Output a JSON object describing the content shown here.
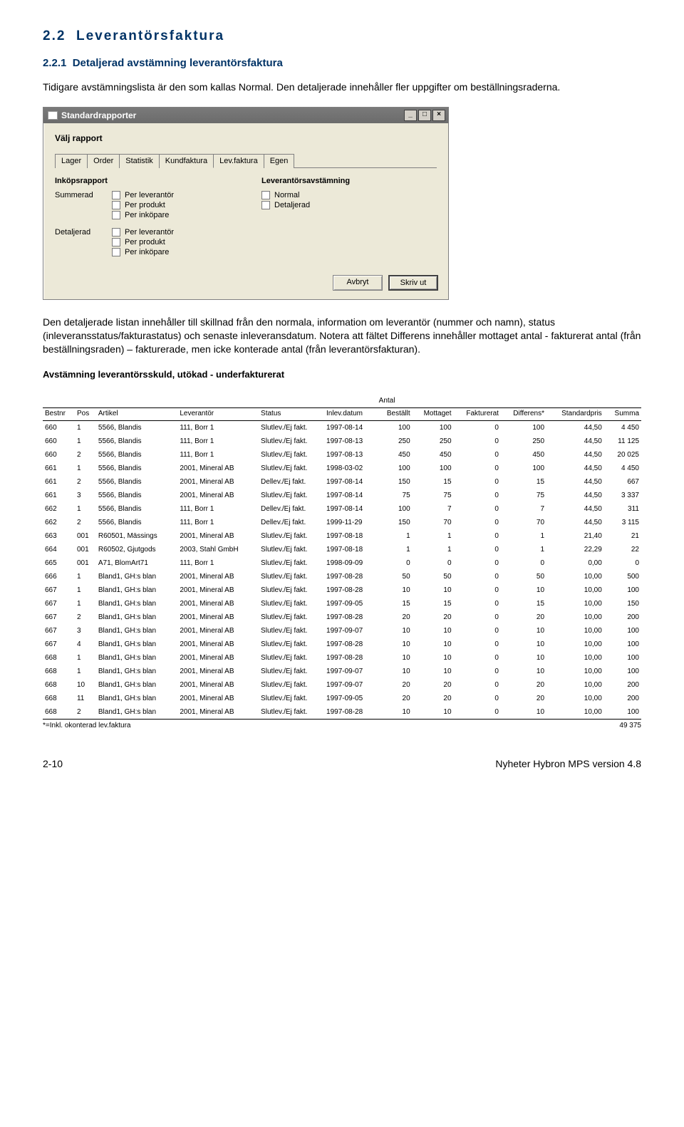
{
  "section": {
    "number": "2.2",
    "title": "Leverantörsfaktura",
    "sub_number": "2.2.1",
    "sub_title": "Detaljerad avstämning leverantörsfaktura",
    "para1": "Tidigare avstämningslista är den som kallas Normal. Den detaljerade innehåller fler uppgifter om beställningsraderna.",
    "para2": "Den detaljerade listan innehåller till skillnad från den normala, information om leverantör (nummer och namn), status (inleveransstatus/fakturastatus) och senaste inleveransdatum. Notera att fältet Differens innehåller mottaget antal - fakturerat antal (från beställningsraden) – fakturerade, men icke konterade antal (från leverantörsfakturan)."
  },
  "dialog": {
    "title": "Standardrapporter",
    "heading": "Välj rapport",
    "tabs": [
      "Lager",
      "Order",
      "Statistik",
      "Kundfaktura",
      "Lev.faktura",
      "Egen"
    ],
    "active_tab": "Lev.faktura",
    "left": {
      "heading": "Inköpsrapport",
      "group1_label": "Summerad",
      "group1_items": [
        "Per leverantör",
        "Per produkt",
        "Per inköpare"
      ],
      "group2_label": "Detaljerad",
      "group2_items": [
        "Per leverantör",
        "Per produkt",
        "Per inköpare"
      ]
    },
    "right": {
      "heading": "Leverantörsavstämning",
      "items": [
        "Normal",
        "Detaljerad"
      ]
    },
    "btn_cancel": "Avbryt",
    "btn_print": "Skriv ut"
  },
  "report": {
    "title": "Avstämning leverantörsskuld, utökad - underfakturerat",
    "group_header": "Antal",
    "columns": [
      "Bestnr",
      "Pos",
      "Artikel",
      "Leverantör",
      "Status",
      "Inlev.datum",
      "Beställt",
      "Mottaget",
      "Fakturerat",
      "Differens*",
      "Standardpris",
      "Summa"
    ],
    "rows": [
      [
        "660",
        "1",
        "5566, Blandis",
        "111, Borr 1",
        "Slutlev./Ej fakt.",
        "1997-08-14",
        "100",
        "100",
        "0",
        "100",
        "44,50",
        "4 450"
      ],
      [
        "660",
        "1",
        "5566, Blandis",
        "111, Borr 1",
        "Slutlev./Ej fakt.",
        "1997-08-13",
        "250",
        "250",
        "0",
        "250",
        "44,50",
        "11 125"
      ],
      [
        "660",
        "2",
        "5566, Blandis",
        "111, Borr 1",
        "Slutlev./Ej fakt.",
        "1997-08-13",
        "450",
        "450",
        "0",
        "450",
        "44,50",
        "20 025"
      ],
      [
        "661",
        "1",
        "5566, Blandis",
        "2001, Mineral AB",
        "Slutlev./Ej fakt.",
        "1998-03-02",
        "100",
        "100",
        "0",
        "100",
        "44,50",
        "4 450"
      ],
      [
        "661",
        "2",
        "5566, Blandis",
        "2001, Mineral AB",
        "Dellev./Ej fakt.",
        "1997-08-14",
        "150",
        "15",
        "0",
        "15",
        "44,50",
        "667"
      ],
      [
        "661",
        "3",
        "5566, Blandis",
        "2001, Mineral AB",
        "Slutlev./Ej fakt.",
        "1997-08-14",
        "75",
        "75",
        "0",
        "75",
        "44,50",
        "3 337"
      ],
      [
        "662",
        "1",
        "5566, Blandis",
        "111, Borr 1",
        "Dellev./Ej fakt.",
        "1997-08-14",
        "100",
        "7",
        "0",
        "7",
        "44,50",
        "311"
      ],
      [
        "662",
        "2",
        "5566, Blandis",
        "111, Borr 1",
        "Dellev./Ej fakt.",
        "1999-11-29",
        "150",
        "70",
        "0",
        "70",
        "44,50",
        "3 115"
      ],
      [
        "663",
        "001",
        "R60501, Mässings",
        "2001, Mineral AB",
        "Slutlev./Ej fakt.",
        "1997-08-18",
        "1",
        "1",
        "0",
        "1",
        "21,40",
        "21"
      ],
      [
        "664",
        "001",
        "R60502, Gjutgods",
        "2003, Stahl GmbH",
        "Slutlev./Ej fakt.",
        "1997-08-18",
        "1",
        "1",
        "0",
        "1",
        "22,29",
        "22"
      ],
      [
        "665",
        "001",
        "A71, BlomArt71",
        "111, Borr 1",
        "Slutlev./Ej fakt.",
        "1998-09-09",
        "0",
        "0",
        "0",
        "0",
        "0,00",
        "0"
      ],
      [
        "666",
        "1",
        "Bland1, GH:s blan",
        "2001, Mineral AB",
        "Slutlev./Ej fakt.",
        "1997-08-28",
        "50",
        "50",
        "0",
        "50",
        "10,00",
        "500"
      ],
      [
        "667",
        "1",
        "Bland1, GH:s blan",
        "2001, Mineral AB",
        "Slutlev./Ej fakt.",
        "1997-08-28",
        "10",
        "10",
        "0",
        "10",
        "10,00",
        "100"
      ],
      [
        "667",
        "1",
        "Bland1, GH:s blan",
        "2001, Mineral AB",
        "Slutlev./Ej fakt.",
        "1997-09-05",
        "15",
        "15",
        "0",
        "15",
        "10,00",
        "150"
      ],
      [
        "667",
        "2",
        "Bland1, GH:s blan",
        "2001, Mineral AB",
        "Slutlev./Ej fakt.",
        "1997-08-28",
        "20",
        "20",
        "0",
        "20",
        "10,00",
        "200"
      ],
      [
        "667",
        "3",
        "Bland1, GH:s blan",
        "2001, Mineral AB",
        "Slutlev./Ej fakt.",
        "1997-09-07",
        "10",
        "10",
        "0",
        "10",
        "10,00",
        "100"
      ],
      [
        "667",
        "4",
        "Bland1, GH:s blan",
        "2001, Mineral AB",
        "Slutlev./Ej fakt.",
        "1997-08-28",
        "10",
        "10",
        "0",
        "10",
        "10,00",
        "100"
      ],
      [
        "668",
        "1",
        "Bland1, GH:s blan",
        "2001, Mineral AB",
        "Slutlev./Ej fakt.",
        "1997-08-28",
        "10",
        "10",
        "0",
        "10",
        "10,00",
        "100"
      ],
      [
        "668",
        "1",
        "Bland1, GH:s blan",
        "2001, Mineral AB",
        "Slutlev./Ej fakt.",
        "1997-09-07",
        "10",
        "10",
        "0",
        "10",
        "10,00",
        "100"
      ],
      [
        "668",
        "10",
        "Bland1, GH:s blan",
        "2001, Mineral AB",
        "Slutlev./Ej fakt.",
        "1997-09-07",
        "20",
        "20",
        "0",
        "20",
        "10,00",
        "200"
      ],
      [
        "668",
        "11",
        "Bland1, GH:s blan",
        "2001, Mineral AB",
        "Slutlev./Ej fakt.",
        "1997-09-05",
        "20",
        "20",
        "0",
        "20",
        "10,00",
        "200"
      ],
      [
        "668",
        "2",
        "Bland1, GH:s blan",
        "2001, Mineral AB",
        "Slutlev./Ej fakt.",
        "1997-08-28",
        "10",
        "10",
        "0",
        "10",
        "10,00",
        "100"
      ]
    ],
    "footnote": "*=Inkl. okonterad lev.faktura",
    "total": "49 375"
  },
  "footer": {
    "left": "2-10",
    "right": "Nyheter Hybron MPS version 4.8"
  }
}
